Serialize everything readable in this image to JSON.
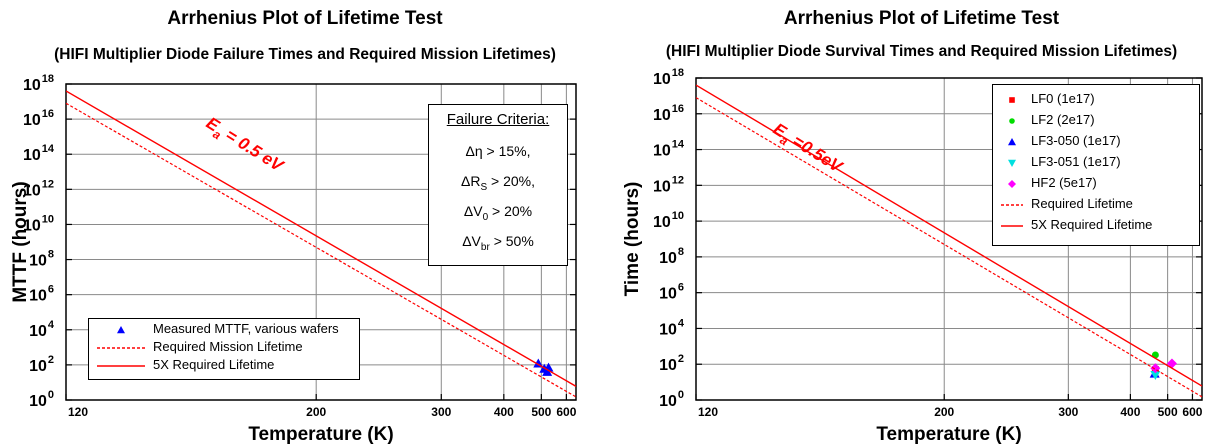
{
  "charts": [
    {
      "type": "scatter",
      "title": "Arrhenius Plot of Lifetime Test",
      "subtitle": "(HIFI Multiplier Diode Failure Times and Required Mission Lifetimes)",
      "xlabel": "Temperature (K)",
      "ylabel": "MTTF (hours)",
      "x_scale": "reciprocal",
      "y_scale": "log",
      "xlim": [
        120,
        650
      ],
      "ylim_exp": [
        0,
        18
      ],
      "x_ticks": [
        120,
        200,
        300,
        400,
        500,
        600
      ],
      "y_ticks_exp": [
        0,
        2,
        4,
        6,
        8,
        10,
        12,
        14,
        16,
        18
      ],
      "grid": true,
      "legend_position": "bottom-left",
      "annotation": {
        "base": "E",
        "sub": "a",
        "rest": " = 0.5 eV",
        "color": "#ff0000"
      },
      "criteria": {
        "title": "Failure Criteria:",
        "lines": [
          {
            "pre": "Δη > 15%,",
            "sub": "",
            "post": ""
          },
          {
            "pre": "ΔR",
            "sub": "S",
            "post": " > 20%,"
          },
          {
            "pre": "ΔV",
            "sub": "0",
            "post": " > 20%"
          },
          {
            "pre": "ΔV",
            "sub": "br",
            "post": " > 50%"
          }
        ]
      },
      "series": [
        {
          "name": "Measured MTTF, various wafers",
          "kind": "points",
          "marker": "triangle-up",
          "color": "#0000ff",
          "points": [
            [
              490,
              120
            ],
            [
              510,
              60
            ],
            [
              520,
              40
            ],
            [
              525,
              70
            ]
          ]
        },
        {
          "name": "Required Mission Lifetime",
          "kind": "line",
          "style": "dashed",
          "color": "#ff0000",
          "points": [
            [
              120,
              8e+16
            ],
            [
              650,
              1.5
            ]
          ]
        },
        {
          "name": "5X Required Lifetime",
          "kind": "line",
          "style": "solid",
          "color": "#ff0000",
          "points": [
            [
              120,
              4e+17
            ],
            [
              650,
              6
            ]
          ]
        }
      ]
    },
    {
      "type": "scatter",
      "title": "Arrhenius Plot of Lifetime Test",
      "subtitle": "(HIFI Multiplier Diode Survival Times and Required Mission Lifetimes)",
      "xlabel": "Temperature (K)",
      "ylabel": "Time (hours)",
      "x_scale": "reciprocal",
      "y_scale": "log",
      "xlim": [
        120,
        650
      ],
      "ylim_exp": [
        0,
        18
      ],
      "x_ticks": [
        120,
        200,
        300,
        400,
        500,
        600
      ],
      "y_ticks_exp": [
        0,
        2,
        4,
        6,
        8,
        10,
        12,
        14,
        16,
        18
      ],
      "grid": true,
      "legend_position": "top-right",
      "annotation": {
        "base": "E",
        "sub": "a",
        "rest": " =0.5eV",
        "color": "#ff0000"
      },
      "series": [
        {
          "name": "LF0 (1e17)",
          "kind": "points",
          "marker": "square",
          "color": "#ff0000",
          "points": [
            [
              462,
              50
            ]
          ]
        },
        {
          "name": "LF2 (2e17)",
          "kind": "points",
          "marker": "circle",
          "color": "#00dd00",
          "points": [
            [
              462,
              330
            ]
          ]
        },
        {
          "name": "LF3-050 (1e17)",
          "kind": "points",
          "marker": "triangle-up",
          "color": "#0000ff",
          "points": [
            [
              460,
              30
            ]
          ]
        },
        {
          "name": "LF3-051 (1e17)",
          "kind": "points",
          "marker": "triangle-down",
          "color": "#00e0e0",
          "points": [
            [
              462,
              25
            ]
          ]
        },
        {
          "name": "HF2 (5e17)",
          "kind": "points",
          "marker": "diamond",
          "color": "#ff00ff",
          "points": [
            [
              462,
              60
            ],
            [
              515,
              110
            ]
          ]
        },
        {
          "name": "Required Lifetime",
          "kind": "line",
          "style": "dashed",
          "color": "#ff0000",
          "points": [
            [
              120,
              8e+16
            ],
            [
              650,
              1.5
            ]
          ]
        },
        {
          "name": "5X Required Lifetime",
          "kind": "line",
          "style": "solid",
          "color": "#ff0000",
          "points": [
            [
              120,
              4e+17
            ],
            [
              650,
              6
            ]
          ]
        }
      ]
    }
  ]
}
